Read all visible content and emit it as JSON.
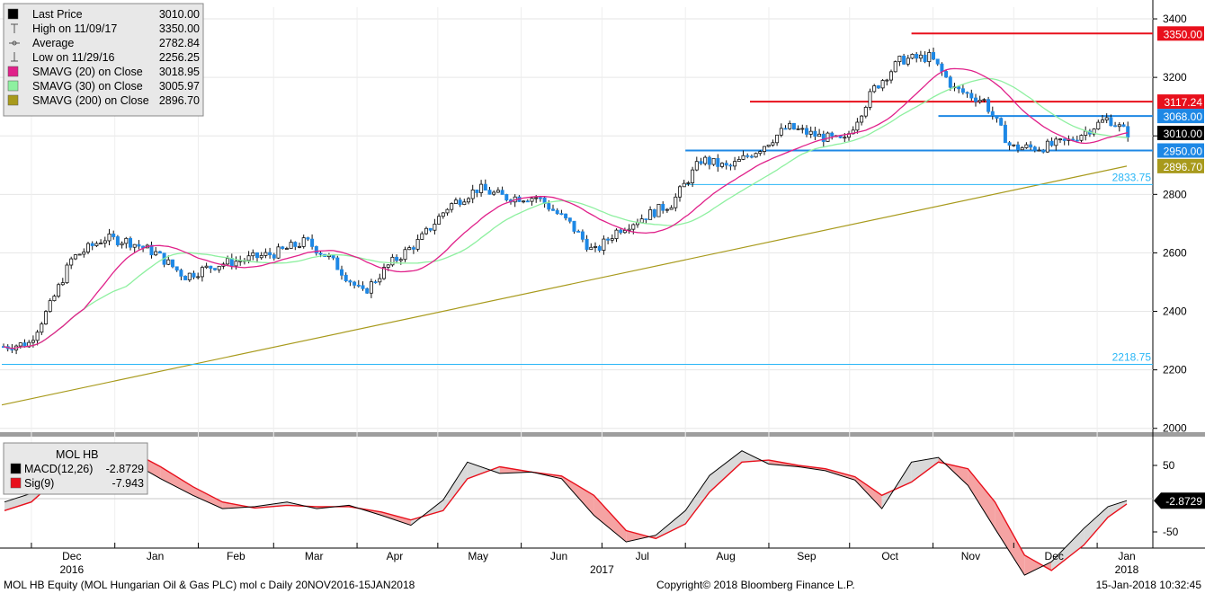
{
  "chart_data": [
    {
      "type": "candlestick",
      "instrument": "MOL HB",
      "legend": [
        {
          "label": "Last Price",
          "value": "3010.00",
          "color": "#000000",
          "marker": "square"
        },
        {
          "label": "High on 11/09/17",
          "value": "3350.00",
          "marker": "high"
        },
        {
          "label": "Average",
          "value": "2782.84",
          "marker": "avg"
        },
        {
          "label": "Low on 11/29/16",
          "value": "2256.25",
          "marker": "low"
        },
        {
          "label": "SMAVG (20) on Close",
          "value": "3018.95",
          "color": "#e0218a",
          "marker": "square"
        },
        {
          "label": "SMAVG (30) on Close",
          "value": "3005.97",
          "color": "#8ef0a0",
          "marker": "square"
        },
        {
          "label": "SMAVG (200) on Close",
          "value": "2896.70",
          "color": "#a89a1c",
          "marker": "square"
        }
      ],
      "y_ticks": [
        2000,
        2200,
        2400,
        2600,
        2800,
        3000,
        3200,
        3400
      ],
      "ylim": [
        1990,
        3440
      ],
      "levels": [
        {
          "label": "3350.00",
          "value": 3350,
          "color": "#e8101c",
          "x_from": "2017-10-24"
        },
        {
          "label": "3117.24",
          "value": 3117.24,
          "color": "#e8101c",
          "x_from": "2017-08-25"
        },
        {
          "label": "3068.00",
          "value": 3068,
          "color": "#1e88e5",
          "x_from": "2017-11-03"
        },
        {
          "label": "2950.00",
          "value": 2950,
          "color": "#1e88e5",
          "x_from": "2017-08-01"
        },
        {
          "label": "2833.75",
          "value": 2833.75,
          "color": "#29b6f6",
          "x_from": "2017-07-31"
        },
        {
          "label": "2218.75",
          "value": 2218.75,
          "color": "#29b6f6",
          "x_from": "2016-11-20"
        }
      ],
      "price_tags": [
        {
          "label": "3010.00",
          "value": 3010,
          "color": "#000000"
        },
        {
          "label": "2896.70",
          "value": 2896.7,
          "color": "#a89a1c"
        }
      ],
      "close_series": {
        "dates": [
          "2016-11-21",
          "2016-11-30",
          "2016-12-08",
          "2016-12-16",
          "2016-12-28",
          "2017-01-06",
          "2017-01-16",
          "2017-01-27",
          "2017-02-08",
          "2017-02-20",
          "2017-03-02",
          "2017-03-13",
          "2017-03-22",
          "2017-04-03",
          "2017-04-13",
          "2017-04-24",
          "2017-05-05",
          "2017-05-16",
          "2017-05-26",
          "2017-06-07",
          "2017-06-19",
          "2017-06-28",
          "2017-07-07",
          "2017-07-18",
          "2017-07-27",
          "2017-08-07",
          "2017-08-17",
          "2017-08-29",
          "2017-09-08",
          "2017-09-19",
          "2017-09-29",
          "2017-10-10",
          "2017-10-20",
          "2017-10-31",
          "2017-11-09",
          "2017-11-20",
          "2017-11-30",
          "2017-12-11",
          "2017-12-21",
          "2018-01-05",
          "2018-01-12"
        ],
        "values": [
          2280,
          2290,
          2420,
          2580,
          2650,
          2640,
          2600,
          2520,
          2560,
          2580,
          2600,
          2640,
          2580,
          2460,
          2560,
          2640,
          2760,
          2820,
          2790,
          2790,
          2700,
          2600,
          2680,
          2730,
          2770,
          2920,
          2890,
          2960,
          3030,
          3000,
          2980,
          3160,
          3260,
          3270,
          3160,
          3120,
          2960,
          2960,
          2980,
          3060,
          3010
        ]
      },
      "sma200": {
        "dates": [
          "2016-11-20",
          "2018-01-12"
        ],
        "values": [
          2080,
          2896.7
        ]
      },
      "x_month_labels": [
        "Dec",
        "Jan",
        "Feb",
        "Mar",
        "Apr",
        "May",
        "Jun",
        "Jul",
        "Aug",
        "Sep",
        "Oct",
        "Nov",
        "Dec",
        "Jan"
      ],
      "x_year_labels": [
        "2016",
        "2017",
        "2018"
      ]
    },
    {
      "type": "line",
      "title": "MOL HB",
      "series": [
        {
          "name": "MACD(12,26)",
          "value": "-2.8729",
          "color": "#000000"
        },
        {
          "name": "Sig(9)",
          "value": "-7.943",
          "color": "#e8101c"
        }
      ],
      "y_ticks": [
        -50,
        50
      ],
      "zero_line": 0,
      "last_tag": "-2.8729",
      "macd": {
        "dates": [
          "2016-11-21",
          "2016-12-01",
          "2016-12-12",
          "2016-12-22",
          "2017-01-05",
          "2017-01-18",
          "2017-01-30",
          "2017-02-10",
          "2017-02-22",
          "2017-03-06",
          "2017-03-17",
          "2017-03-29",
          "2017-04-10",
          "2017-04-21",
          "2017-05-03",
          "2017-05-12",
          "2017-05-24",
          "2017-06-05",
          "2017-06-16",
          "2017-06-28",
          "2017-07-10",
          "2017-07-21",
          "2017-08-01",
          "2017-08-10",
          "2017-08-22",
          "2017-09-01",
          "2017-09-12",
          "2017-09-22",
          "2017-10-03",
          "2017-10-13",
          "2017-10-24",
          "2017-11-03",
          "2017-11-14",
          "2017-11-24",
          "2017-12-05",
          "2017-12-15",
          "2017-12-27",
          "2018-01-05",
          "2018-01-12"
        ],
        "values": [
          -5,
          8,
          60,
          78,
          60,
          30,
          5,
          -15,
          -12,
          -5,
          -15,
          -10,
          -25,
          -40,
          -2,
          55,
          38,
          40,
          30,
          -25,
          -65,
          -55,
          -18,
          35,
          72,
          52,
          48,
          42,
          28,
          -15,
          55,
          62,
          20,
          -45,
          -115,
          -95,
          -45,
          -12,
          -3
        ]
      },
      "signal": {
        "dates": [
          "2016-11-21",
          "2016-12-01",
          "2016-12-12",
          "2016-12-22",
          "2017-01-05",
          "2017-01-18",
          "2017-01-30",
          "2017-02-10",
          "2017-02-22",
          "2017-03-06",
          "2017-03-17",
          "2017-03-29",
          "2017-04-10",
          "2017-04-21",
          "2017-05-03",
          "2017-05-12",
          "2017-05-24",
          "2017-06-05",
          "2017-06-16",
          "2017-06-28",
          "2017-07-10",
          "2017-07-21",
          "2017-08-01",
          "2017-08-10",
          "2017-08-22",
          "2017-09-01",
          "2017-09-12",
          "2017-09-22",
          "2017-10-03",
          "2017-10-13",
          "2017-10-24",
          "2017-11-03",
          "2017-11-14",
          "2017-11-24",
          "2017-12-05",
          "2017-12-15",
          "2017-12-27",
          "2018-01-05",
          "2018-01-12"
        ],
        "values": [
          -18,
          -5,
          35,
          72,
          76,
          48,
          18,
          -5,
          -14,
          -10,
          -12,
          -12,
          -20,
          -32,
          -18,
          30,
          48,
          40,
          34,
          5,
          -48,
          -60,
          -38,
          10,
          55,
          58,
          50,
          45,
          33,
          5,
          25,
          55,
          45,
          -5,
          -85,
          -108,
          -70,
          -28,
          -8
        ]
      }
    }
  ],
  "footer": {
    "left": "MOL HB Equity (MOL Hungarian Oil & Gas PLC) mol c  Daily 20NOV2016-15JAN2018",
    "center": "Copyright© 2018 Bloomberg Finance L.P.",
    "right": "15-Jan-2018 10:32:45"
  }
}
